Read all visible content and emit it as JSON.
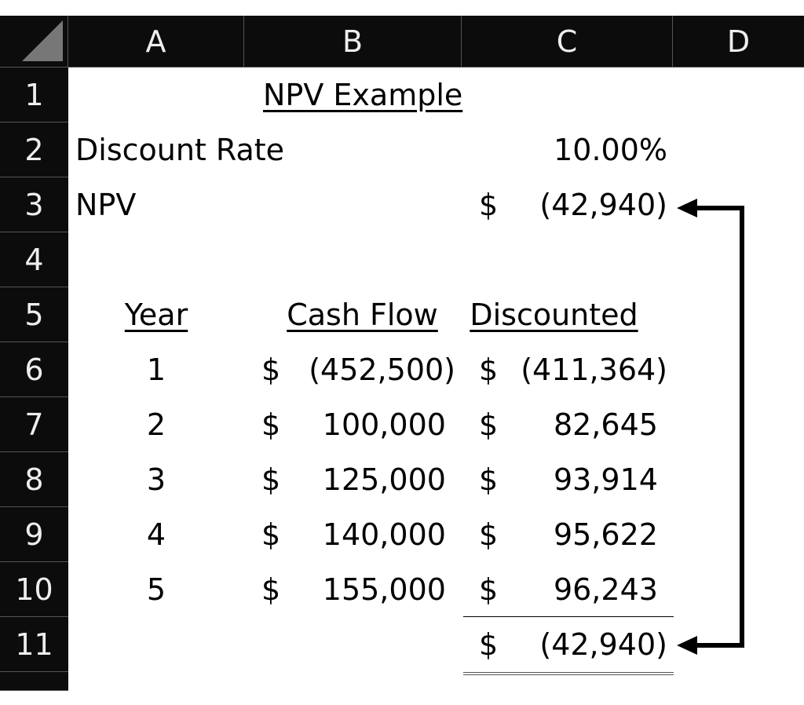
{
  "columns": [
    "A",
    "B",
    "C",
    "D"
  ],
  "rows": [
    "1",
    "2",
    "3",
    "4",
    "5",
    "6",
    "7",
    "8",
    "9",
    "10",
    "11",
    ""
  ],
  "title": "NPV Example",
  "discount_rate": {
    "label": "Discount Rate",
    "value": "10.00%"
  },
  "npv": {
    "label": "NPV",
    "currency": "$",
    "value": "(42,940)"
  },
  "table": {
    "headers": [
      "Year",
      "Cash Flow",
      "Discounted"
    ],
    "rows": [
      {
        "year": "1",
        "cash_flow": "(452,500)",
        "discounted": "(411,364)"
      },
      {
        "year": "2",
        "cash_flow": "100,000 ",
        "discounted": "82,645 "
      },
      {
        "year": "3",
        "cash_flow": "125,000 ",
        "discounted": "93,914 "
      },
      {
        "year": "4",
        "cash_flow": "140,000 ",
        "discounted": "95,622 "
      },
      {
        "year": "5",
        "cash_flow": "155,000 ",
        "discounted": "96,243 "
      }
    ],
    "currency": "$",
    "total": "(42,940)"
  }
}
